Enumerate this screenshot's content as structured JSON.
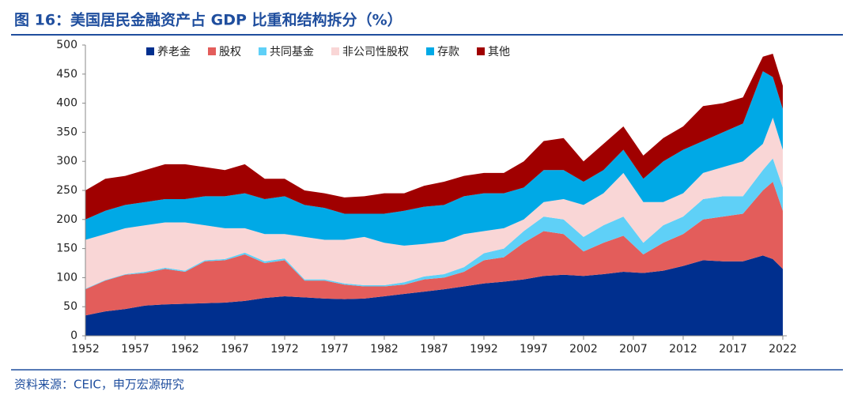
{
  "chart_data": {
    "type": "stacked_area",
    "title": "图 16：美国居民金融资产占 GDP 比重和结构拆分（%）",
    "source": "资料来源：CEIC，申万宏源研究",
    "x": [
      1952,
      1954,
      1956,
      1958,
      1960,
      1962,
      1964,
      1966,
      1968,
      1970,
      1972,
      1974,
      1976,
      1978,
      1980,
      1982,
      1984,
      1986,
      1988,
      1990,
      1992,
      1994,
      1996,
      1998,
      2000,
      2002,
      2004,
      2006,
      2008,
      2010,
      2012,
      2014,
      2016,
      2018,
      2020,
      2021,
      2022
    ],
    "series": [
      {
        "name": "养老金",
        "color": "#002f8e",
        "values": [
          35,
          42,
          46,
          52,
          54,
          55,
          56,
          57,
          60,
          65,
          68,
          66,
          64,
          63,
          64,
          68,
          72,
          76,
          80,
          85,
          90,
          93,
          97,
          103,
          105,
          103,
          106,
          110,
          108,
          112,
          120,
          130,
          128,
          128,
          138,
          132,
          115
        ]
      },
      {
        "name": "股权",
        "color": "#e35d5b",
        "values": [
          45,
          53,
          59,
          56,
          61,
          55,
          72,
          73,
          80,
          60,
          62,
          29,
          31,
          25,
          21,
          17,
          16,
          21,
          20,
          25,
          40,
          42,
          63,
          77,
          70,
          42,
          54,
          62,
          32,
          48,
          55,
          70,
          77,
          82,
          112,
          133,
          100
        ]
      },
      {
        "name": "共同基金",
        "color": "#5fd0f7",
        "values": [
          1,
          1,
          1,
          2,
          2,
          2,
          2,
          2,
          3,
          3,
          3,
          2,
          2,
          2,
          2,
          2,
          4,
          5,
          6,
          8,
          12,
          15,
          20,
          25,
          25,
          25,
          30,
          33,
          20,
          30,
          30,
          35,
          35,
          30,
          35,
          40,
          40
        ]
      },
      {
        "name": "非公司性股权",
        "color": "#f9d6d6",
        "values": [
          84,
          79,
          79,
          80,
          78,
          83,
          60,
          53,
          42,
          47,
          42,
          73,
          68,
          75,
          83,
          73,
          63,
          56,
          56,
          57,
          38,
          35,
          20,
          25,
          35,
          55,
          55,
          75,
          70,
          40,
          40,
          45,
          50,
          60,
          45,
          70,
          65
        ]
      },
      {
        "name": "存款",
        "color": "#00a9e6",
        "values": [
          35,
          40,
          40,
          40,
          40,
          40,
          50,
          55,
          60,
          60,
          65,
          55,
          55,
          45,
          40,
          50,
          60,
          64,
          63,
          65,
          65,
          60,
          55,
          55,
          50,
          40,
          40,
          40,
          40,
          70,
          75,
          55,
          60,
          65,
          125,
          70,
          70
        ]
      },
      {
        "name": "其他",
        "color": "#a00000",
        "values": [
          50,
          55,
          50,
          55,
          60,
          60,
          50,
          45,
          50,
          35,
          30,
          25,
          25,
          28,
          30,
          35,
          30,
          36,
          40,
          35,
          35,
          35,
          45,
          50,
          55,
          35,
          45,
          40,
          40,
          40,
          40,
          60,
          50,
          45,
          25,
          40,
          40
        ]
      }
    ],
    "xlim": [
      1952,
      2022.4
    ],
    "xticks": [
      1952,
      1957,
      1962,
      1967,
      1972,
      1977,
      1982,
      1987,
      1992,
      1997,
      2002,
      2007,
      2012,
      2017,
      2022
    ],
    "ylim": [
      0,
      500
    ],
    "yticks": [
      0,
      50,
      100,
      150,
      200,
      250,
      300,
      350,
      400,
      450,
      500
    ],
    "legend": "top"
  }
}
